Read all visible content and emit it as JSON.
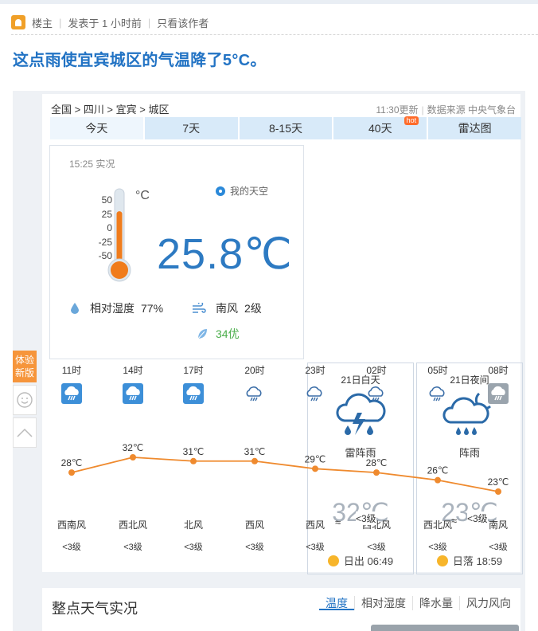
{
  "post": {
    "author_role": "楼主",
    "posted": "发表于 1 小时前",
    "only_author": "只看该作者",
    "title": "这点雨使宜宾城区的气温降了5°C。"
  },
  "weather": {
    "breadcrumb": "全国 > 四川 > 宜宾 > 城区",
    "update_time": "11:30更新",
    "source": "数据来源 中央气象台",
    "tabs": [
      "今天",
      "7天",
      "8-15天",
      "40天",
      "雷达图"
    ],
    "hot_badge": "hot",
    "now": {
      "time": "15:25 实况",
      "my_sky": "我的天空",
      "scale": [
        "50",
        "25",
        "0",
        "-25",
        "-50"
      ],
      "scale_unit": "°C",
      "temp": "25.8℃",
      "humidity_label": "相对湿度",
      "humidity": "77%",
      "wind_dir": "南风",
      "wind_level": "2级",
      "aqi": "34优",
      "thermometer_level": 0.76
    },
    "side_tool": "体验新版",
    "hourly": [
      {
        "time": "11时",
        "temp": "28℃",
        "wind": "西南风",
        "level": "<3级",
        "t": 28
      },
      {
        "time": "14时",
        "temp": "32℃",
        "wind": "西北风",
        "level": "<3级",
        "t": 32
      },
      {
        "time": "17时",
        "temp": "31℃",
        "wind": "北风",
        "level": "<3级",
        "t": 31
      },
      {
        "time": "20时",
        "temp": "31℃",
        "wind": "西风",
        "level": "<3级",
        "t": 31
      },
      {
        "time": "23时",
        "temp": "29℃",
        "wind": "西风",
        "level": "<3级",
        "t": 29
      },
      {
        "time": "02时",
        "temp": "28℃",
        "wind": "西北风",
        "level": "<3级",
        "t": 28
      },
      {
        "time": "05时",
        "temp": "26℃",
        "wind": "西北风",
        "level": "<3级",
        "t": 26
      },
      {
        "time": "08时",
        "temp": "23℃",
        "wind": "南风",
        "level": "<3级",
        "t": 23
      }
    ],
    "day": {
      "label": "21日白天",
      "cond": "雷阵雨",
      "temp": "32℃",
      "wind": "<3级",
      "sun": "日出 06:49"
    },
    "night": {
      "label": "21日夜间",
      "cond": "阵雨",
      "temp": "23℃",
      "wind": "<3级",
      "sun": "日落 18:59"
    },
    "bottom_title": "整点天气实况",
    "bottom_tabs": [
      "温度",
      "相对湿度",
      "降水量",
      "风力风向"
    ],
    "colors": {
      "accent": "#2273c4",
      "line": "#ef8a2e",
      "tab": "#d8eaf9"
    }
  }
}
